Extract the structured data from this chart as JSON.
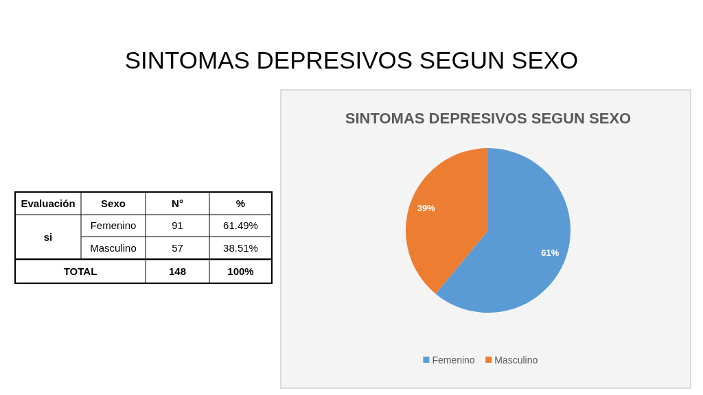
{
  "chart_data": [
    {
      "type": "other",
      "title": "SINTOMAS DEPRESIVOS SEGUN SEXO",
      "annotations": [
        "Evaluación",
        "Sexo",
        "N°",
        "%",
        "si",
        "Femenino",
        "91",
        "61.49%",
        "Masculino",
        "57",
        "38.51%",
        "TOTAL",
        "148",
        "100%"
      ]
    },
    {
      "type": "pie",
      "title": "SINTOMAS DEPRESIVOS SEGUN SEXO",
      "categories": [
        "Femenino",
        "Masculino"
      ],
      "values": [
        61,
        39
      ],
      "colors": [
        "#5b9bd5",
        "#ed7d31"
      ],
      "value_labels": [
        "61%",
        "39%"
      ],
      "legend": "bottom"
    }
  ]
}
